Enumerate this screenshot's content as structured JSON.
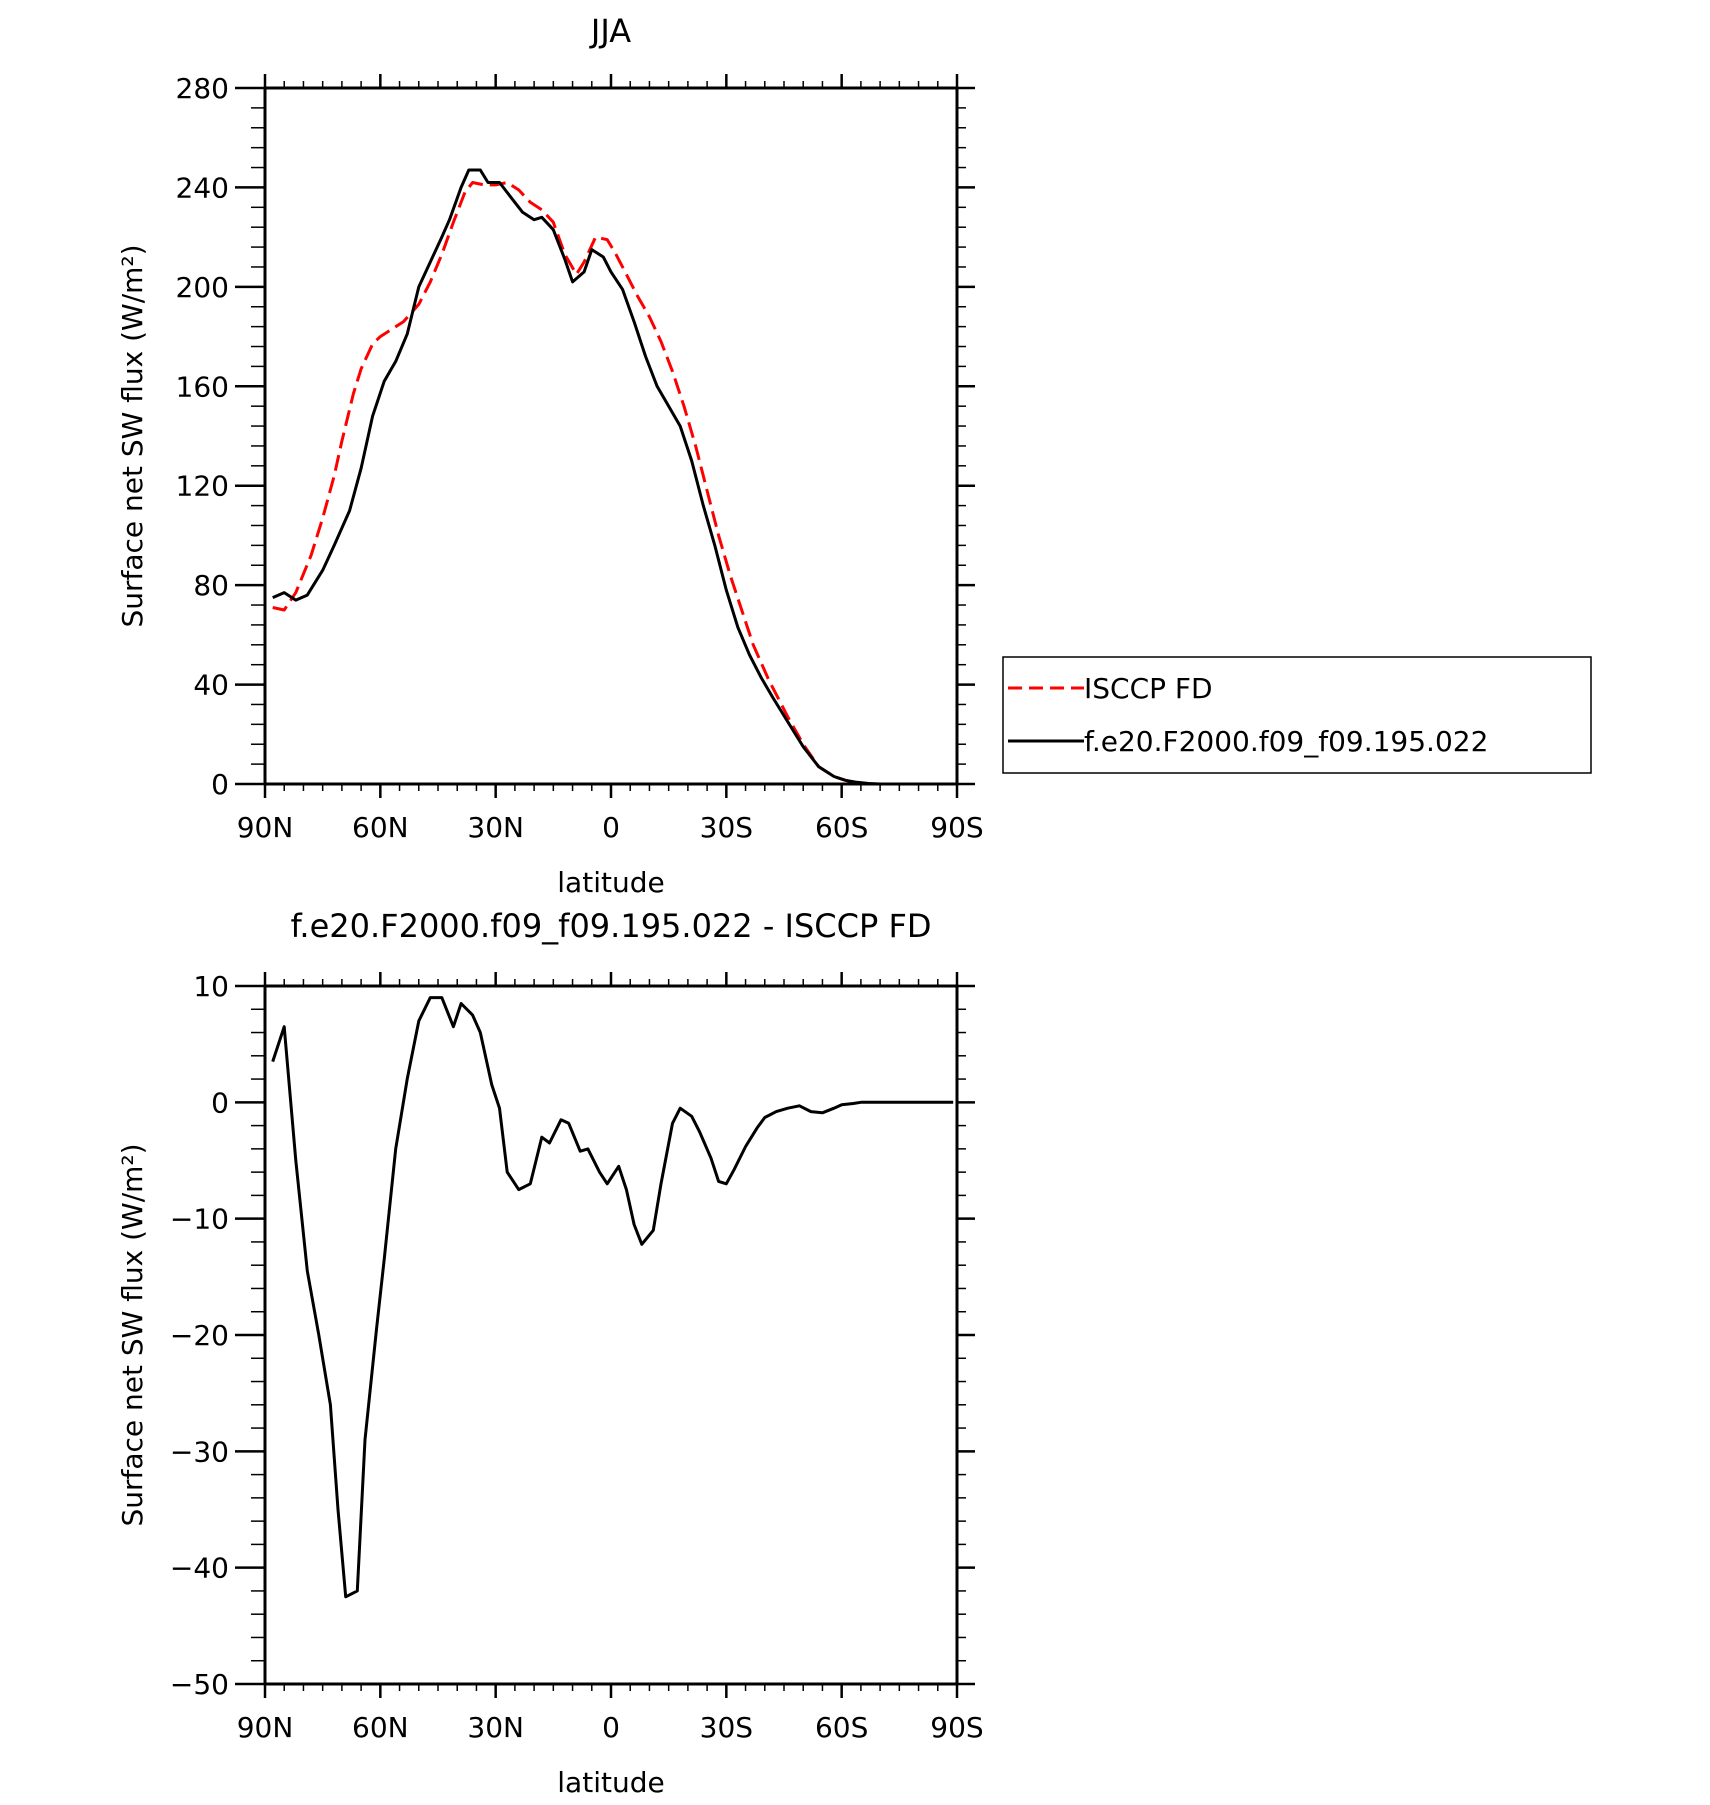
{
  "chart_data": [
    {
      "type": "line",
      "title": "JJA",
      "xlabel": "latitude",
      "ylabel": "Surface net SW flux (W/m²)",
      "xlim": [
        90,
        -90
      ],
      "ylim": [
        0,
        280
      ],
      "x_ticks": [
        90,
        60,
        30,
        0,
        -30,
        -60,
        -90
      ],
      "x_tick_labels": [
        "90N",
        "60N",
        "30N",
        "0",
        "30S",
        "60S",
        "90S"
      ],
      "y_ticks": [
        0,
        40,
        80,
        120,
        160,
        200,
        240,
        280
      ],
      "y_tick_labels": [
        "0",
        "40",
        "80",
        "120",
        "160",
        "200",
        "240",
        "280"
      ],
      "grid": false,
      "legend_position": "right",
      "series": [
        {
          "name": "ISCCP FD",
          "color": "#ff0000",
          "dash": "dashed",
          "x": [
            88,
            85,
            82,
            78,
            75,
            72,
            70,
            67,
            65,
            62,
            60,
            57,
            54,
            50,
            47,
            44,
            41,
            38,
            36,
            33,
            30,
            27,
            24,
            21,
            18,
            15,
            12,
            9,
            7,
            4,
            1,
            -1,
            -4,
            -7,
            -10,
            -13,
            -16,
            -19,
            -22,
            -25,
            -28,
            -31,
            -34,
            -37,
            -41,
            -46,
            -50,
            -54,
            -58,
            -61,
            -63,
            -66,
            -68,
            -70,
            -72,
            -75,
            -78,
            -82,
            -86,
            -89
          ],
          "y": [
            71,
            70,
            77,
            92,
            107,
            124,
            138,
            157,
            167,
            177,
            180,
            183,
            186,
            193,
            202,
            213,
            226,
            238,
            242,
            241,
            241,
            242,
            239,
            234,
            231,
            226,
            213,
            205,
            210,
            220,
            219,
            214,
            205,
            196,
            188,
            178,
            166,
            152,
            136,
            118,
            100,
            84,
            70,
            56,
            42,
            27,
            16,
            7,
            3,
            1.5,
            0.7,
            0.2,
            0,
            0,
            0,
            0,
            0,
            0,
            0,
            0
          ]
        },
        {
          "name": "f.e20.F2000.f09_f09.195.022",
          "color": "#000000",
          "dash": "solid",
          "x": [
            88,
            85,
            82,
            79,
            75,
            72,
            68,
            65,
            62,
            59,
            56,
            53,
            50,
            47,
            44,
            42,
            39,
            37,
            34,
            32,
            29,
            26,
            23,
            20,
            18,
            15,
            12,
            10,
            7,
            5,
            2,
            0,
            -3,
            -6,
            -9,
            -12,
            -15,
            -18,
            -21,
            -24,
            -27,
            -30,
            -33,
            -36,
            -39,
            -42,
            -46,
            -50,
            -54,
            -58,
            -61,
            -64,
            -67,
            -70,
            -73,
            -77,
            -81,
            -85,
            -89
          ],
          "y": [
            75,
            77,
            74,
            76,
            86,
            96,
            110,
            127,
            148,
            162,
            170,
            181,
            200,
            210,
            220,
            227,
            240,
            247,
            247,
            242,
            242,
            236,
            230,
            227,
            228,
            223,
            211,
            202,
            206,
            215,
            212,
            206,
            199,
            186,
            172,
            160,
            152,
            144,
            130,
            112,
            96,
            78,
            63,
            52,
            43,
            35,
            25,
            15,
            7,
            3,
            1.5,
            0.7,
            0.2,
            0,
            0,
            0,
            0,
            0,
            0
          ]
        }
      ]
    },
    {
      "type": "line",
      "title": "f.e20.F2000.f09_f09.195.022 - ISCCP FD",
      "xlabel": "latitude",
      "ylabel": "Surface net SW flux (W/m²)",
      "xlim": [
        90,
        -90
      ],
      "ylim": [
        -50,
        10
      ],
      "x_ticks": [
        90,
        60,
        30,
        0,
        -30,
        -60,
        -90
      ],
      "x_tick_labels": [
        "90N",
        "60N",
        "30N",
        "0",
        "30S",
        "60S",
        "90S"
      ],
      "y_ticks": [
        -50,
        -40,
        -30,
        -20,
        -10,
        0,
        10
      ],
      "y_tick_labels": [
        "−50",
        "−40",
        "−30",
        "−20",
        "−10",
        "0",
        "10"
      ],
      "grid": false,
      "series": [
        {
          "color": "#000000",
          "dash": "solid",
          "x": [
            88,
            85,
            82,
            79,
            76,
            73,
            71,
            69,
            66,
            64,
            61,
            59,
            56,
            53,
            50,
            47,
            44,
            41,
            39,
            36,
            34,
            31,
            29,
            27,
            24,
            21,
            18,
            16,
            13,
            11,
            8,
            6,
            3,
            1,
            -2,
            -4,
            -6,
            -8,
            -11,
            -13,
            -16,
            -18,
            -21,
            -23,
            -26,
            -28,
            -30,
            -32,
            -35,
            -38,
            -40,
            -43,
            -46,
            -49,
            -52,
            -55,
            -58,
            -60,
            -63,
            -65,
            -68,
            -71,
            -74,
            -78,
            -82,
            -86,
            -89
          ],
          "y": [
            3.5,
            6.5,
            -5,
            -14.5,
            -20,
            -26,
            -35,
            -42.5,
            -42,
            -29,
            -19.5,
            -13.5,
            -4,
            2,
            7,
            9,
            9,
            6.5,
            8.5,
            7.5,
            6,
            1.5,
            -0.5,
            -6,
            -7.5,
            -7,
            -3,
            -3.5,
            -1.5,
            -1.8,
            -4.2,
            -4,
            -6,
            -7,
            -5.5,
            -7.5,
            -10.5,
            -12.2,
            -11,
            -7,
            -1.8,
            -0.5,
            -1.2,
            -2.5,
            -4.8,
            -6.8,
            -7,
            -5.8,
            -3.8,
            -2.2,
            -1.3,
            -0.8,
            -0.5,
            -0.3,
            -0.8,
            -0.9,
            -0.5,
            -0.2,
            -0.1,
            0,
            0,
            0,
            0,
            0,
            0,
            0,
            0
          ]
        }
      ]
    }
  ]
}
